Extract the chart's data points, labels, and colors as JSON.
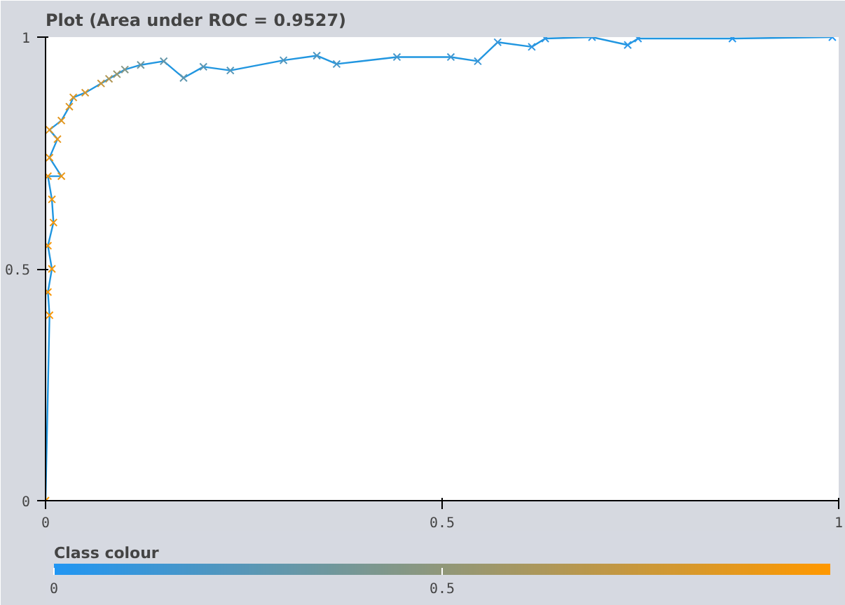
{
  "chart_data": {
    "type": "line",
    "title": "Plot (Area under ROC = 0.9527)",
    "clabel": "Class colour",
    "x": [
      0,
      0.005,
      0.003,
      0.008,
      0.003,
      0.01,
      0.008,
      0.003,
      0.02,
      0.005,
      0.015,
      0.005,
      0.02,
      0.03,
      0.035,
      0.05,
      0.07,
      0.08,
      0.09,
      0.1,
      0.12,
      0.149,
      0.174,
      0.199,
      0.233,
      0.3,
      0.342,
      0.367,
      0.443,
      0.511,
      0.545,
      0.57,
      0.613,
      0.63,
      0.689,
      0.734,
      0.747,
      0.866,
      0.992
    ],
    "series": [
      {
        "color": "#2196e0",
        "values": [
          0,
          0.4,
          0.45,
          0.5,
          0.55,
          0.6,
          0.65,
          0.7,
          0.7,
          0.74,
          0.78,
          0.8,
          0.82,
          0.85,
          0.87,
          0.88,
          0.9,
          0.91,
          0.92,
          0.93,
          0.94,
          0.948,
          0.912,
          0.936,
          0.928,
          0.95,
          0.96,
          0.942,
          0.957,
          0.957,
          0.948,
          0.989,
          0.979,
          0.997,
          1.0,
          0.983,
          0.997,
          0.997,
          1.0
        ],
        "colors": [
          "#ff9800",
          "#fb9705",
          "#f89707",
          "#f6970a",
          "#f4970c",
          "#f2970f",
          "#ef9711",
          "#ed9713",
          "#eb9716",
          "#e99718",
          "#e7971b",
          "#e4971d",
          "#e29720",
          "#e09722",
          "#de9724",
          "#d7972c",
          "#c8973d",
          "#b19755",
          "#9b976d",
          "#859786",
          "#6f979e",
          "#6497aa",
          "#5f97af",
          "#5b97b4",
          "#5697b9",
          "#5297be",
          "#4d97c2",
          "#4997c7",
          "#4597cc",
          "#4097d1",
          "#3c97d6",
          "#3797db",
          "#3397e0",
          "#3197e2",
          "#2e97e4",
          "#2c97e7",
          "#2a97e9",
          "#2597ee",
          "#2196f3"
        ]
      }
    ],
    "xlim": [
      0,
      1
    ],
    "ylim": [
      0,
      1
    ],
    "xticks": [
      0,
      0.5,
      1
    ],
    "yticks": [
      0,
      0.5,
      1
    ],
    "clim": [
      0,
      1
    ],
    "cticks": [
      0,
      0.5
    ],
    "marker": "cross",
    "grid": false
  }
}
